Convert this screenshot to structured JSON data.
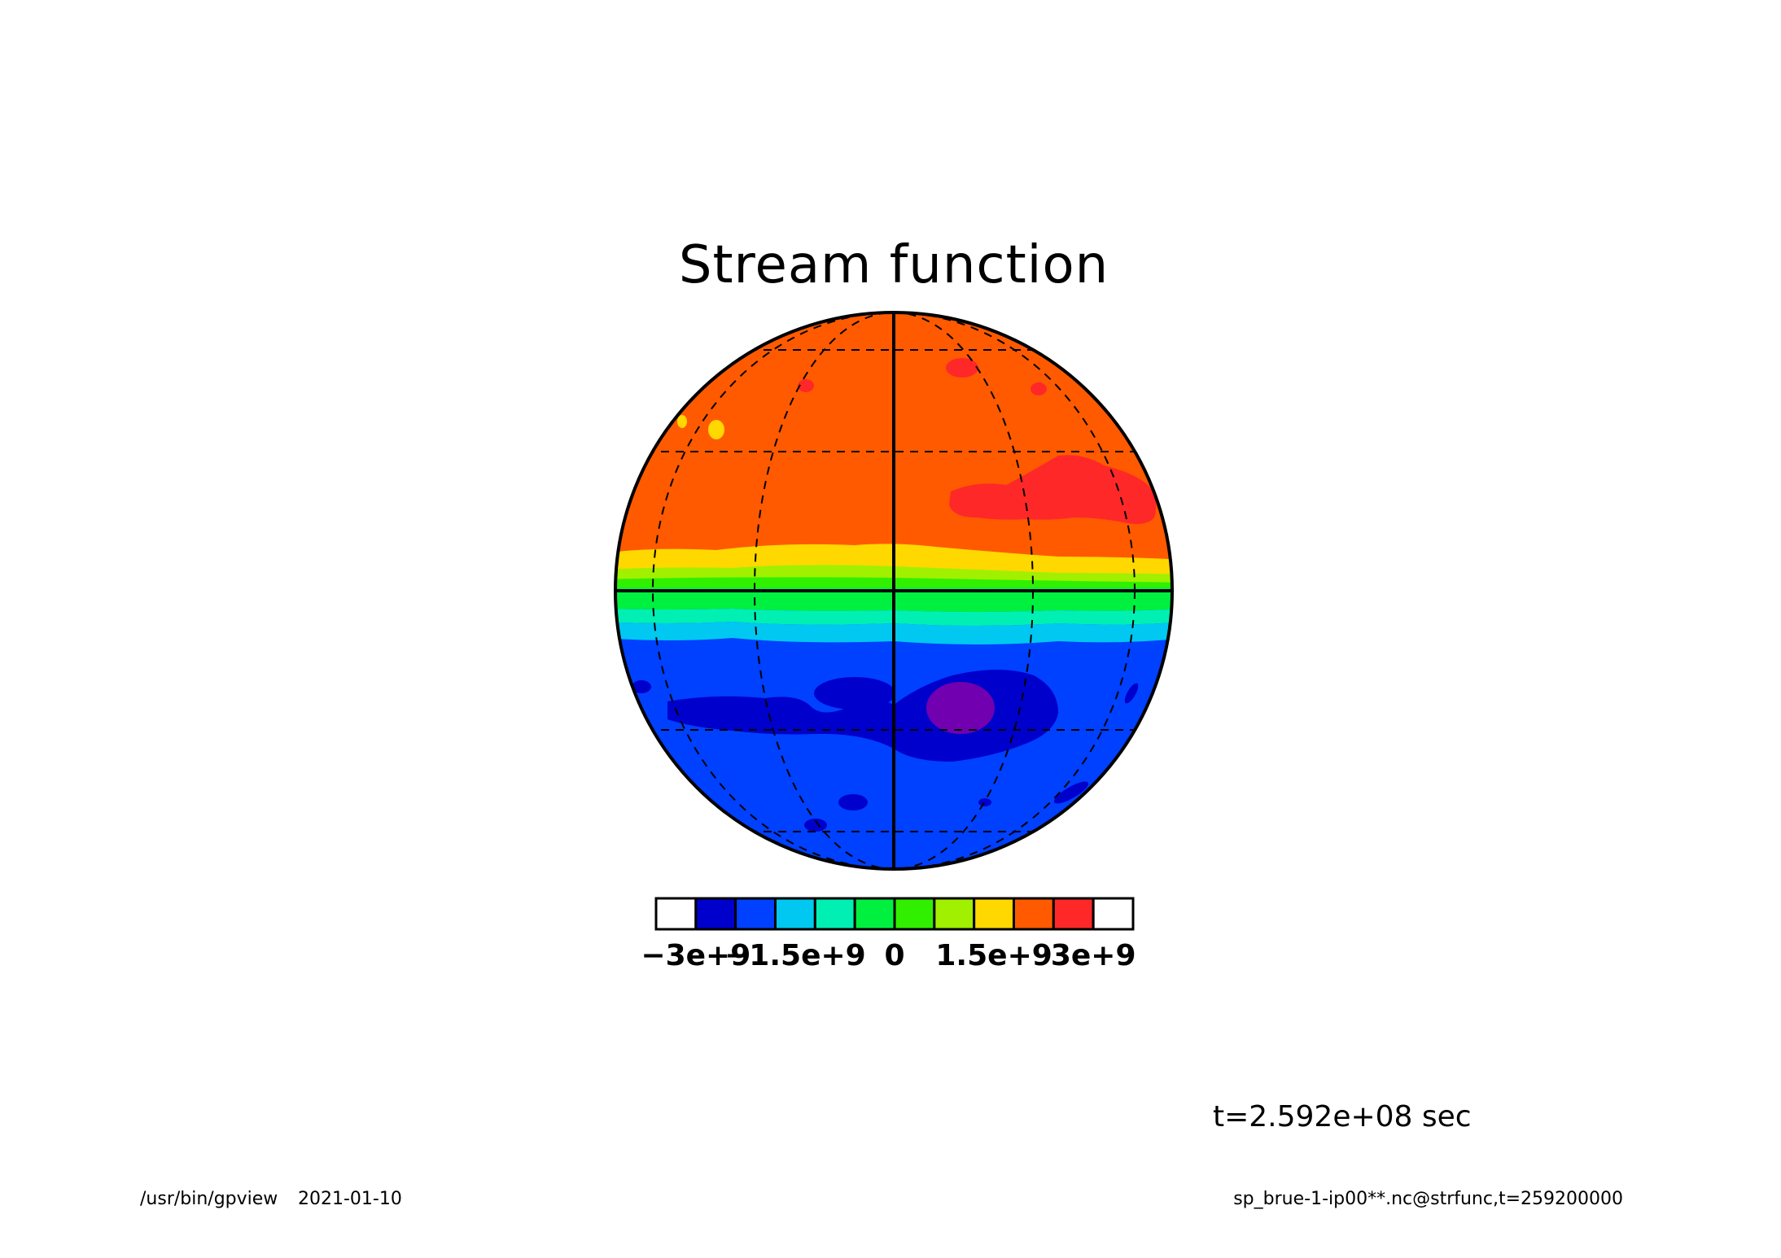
{
  "title": "Stream function",
  "time_label": "t=2.592e+08 sec",
  "footer": {
    "left_program": "/usr/bin/gpview",
    "left_date": "2021-01-10",
    "right_source": "sp_brue-1-ip00**.nc@strfunc,t=259200000"
  },
  "colorbar": {
    "min": -3000000000,
    "max": 3000000000,
    "step": 500000000,
    "colors": [
      "#ffffff",
      "#0000cc",
      "#0040ff",
      "#00c8f0",
      "#00f0b4",
      "#00f040",
      "#30f000",
      "#a0f000",
      "#ffd800",
      "#ff5a00",
      "#ff2828",
      "#ffffff"
    ],
    "ticks": [
      {
        "value": -3000000000,
        "label": "−3e+9"
      },
      {
        "value": -1500000000,
        "label": "−1.5e+9"
      },
      {
        "value": 0,
        "label": "0"
      },
      {
        "value": 1500000000,
        "label": "1.5e+9"
      },
      {
        "value": 3000000000,
        "label": "3e+9"
      }
    ]
  },
  "map": {
    "projection": "orthographic",
    "graticule_latitudes": [
      -60,
      -30,
      0,
      30,
      60
    ],
    "graticule_longitudes": [
      -60,
      -30,
      0,
      30,
      60
    ]
  }
}
